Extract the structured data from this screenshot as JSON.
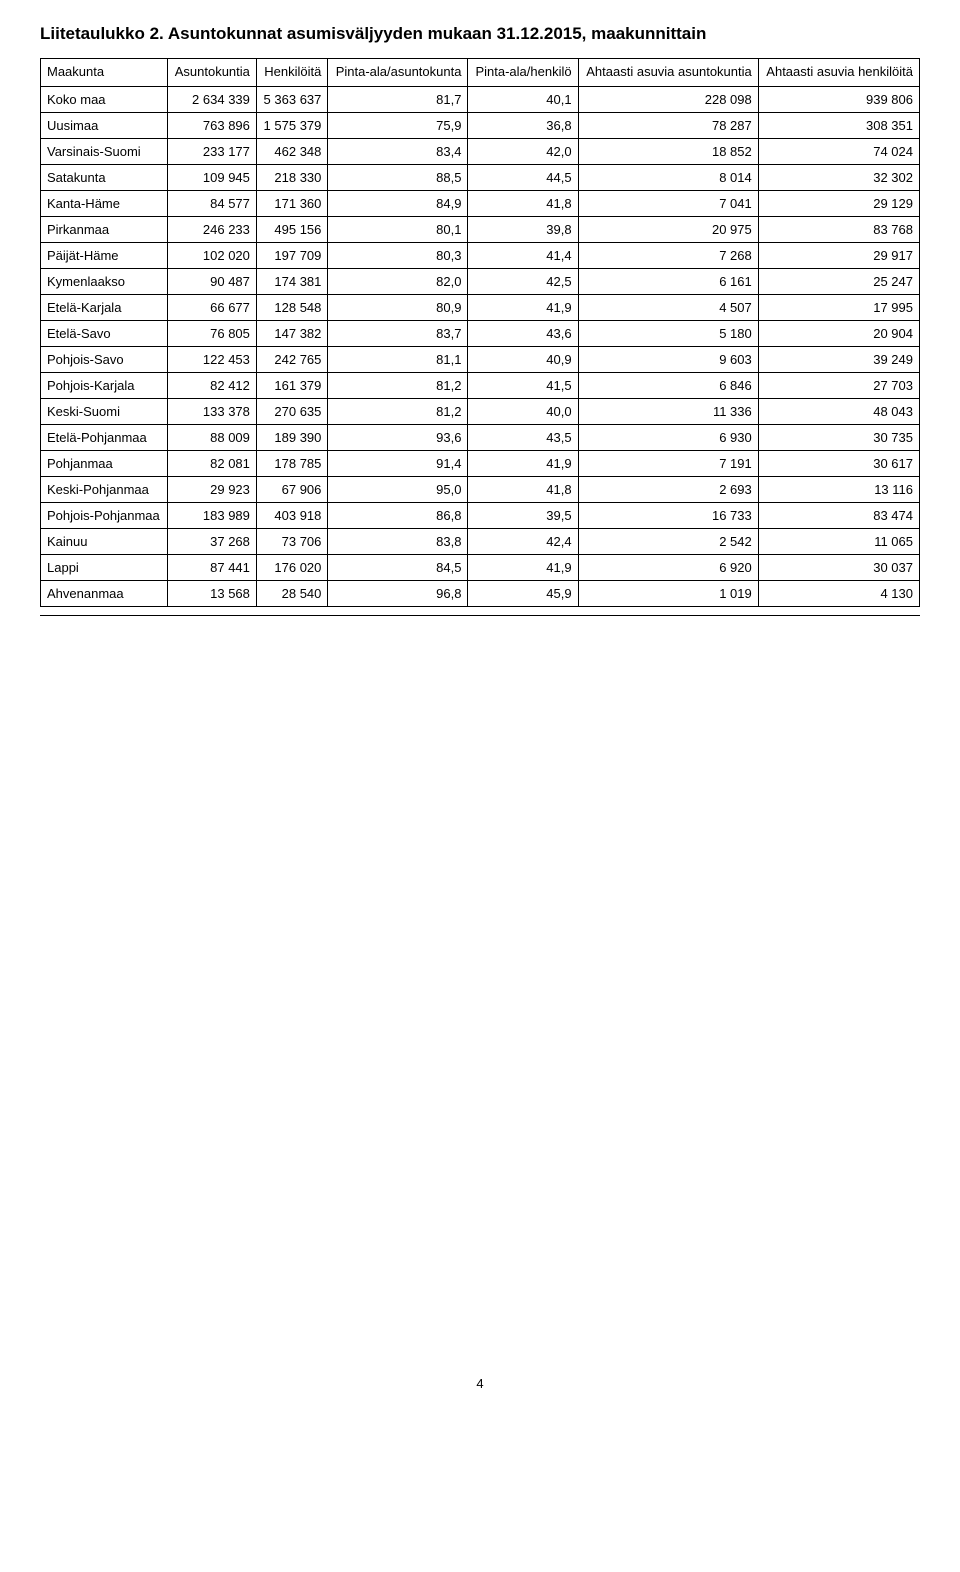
{
  "title": "Liitetaulukko 2. Asuntokunnat asumisväljyyden mukaan 31.12.2015, maakunnittain",
  "table": {
    "columns": [
      "Maakunta",
      "Asuntokuntia",
      "Henkilöitä",
      "Pinta-ala/asuntokunta",
      "Pinta-ala/henkilö",
      "Ahtaasti asuvia asuntokuntia",
      "Ahtaasti asuvia henkilöitä"
    ],
    "rows": [
      [
        "Koko maa",
        "2 634 339",
        "5 363 637",
        "81,7",
        "40,1",
        "228 098",
        "939 806"
      ],
      [
        "Uusimaa",
        "763 896",
        "1 575 379",
        "75,9",
        "36,8",
        "78 287",
        "308 351"
      ],
      [
        "Varsinais-Suomi",
        "233 177",
        "462 348",
        "83,4",
        "42,0",
        "18 852",
        "74 024"
      ],
      [
        "Satakunta",
        "109 945",
        "218 330",
        "88,5",
        "44,5",
        "8 014",
        "32 302"
      ],
      [
        "Kanta-Häme",
        "84 577",
        "171 360",
        "84,9",
        "41,8",
        "7 041",
        "29 129"
      ],
      [
        "Pirkanmaa",
        "246 233",
        "495 156",
        "80,1",
        "39,8",
        "20 975",
        "83 768"
      ],
      [
        "Päijät-Häme",
        "102 020",
        "197 709",
        "80,3",
        "41,4",
        "7 268",
        "29 917"
      ],
      [
        "Kymenlaakso",
        "90 487",
        "174 381",
        "82,0",
        "42,5",
        "6 161",
        "25 247"
      ],
      [
        "Etelä-Karjala",
        "66 677",
        "128 548",
        "80,9",
        "41,9",
        "4 507",
        "17 995"
      ],
      [
        "Etelä-Savo",
        "76 805",
        "147 382",
        "83,7",
        "43,6",
        "5 180",
        "20 904"
      ],
      [
        "Pohjois-Savo",
        "122 453",
        "242 765",
        "81,1",
        "40,9",
        "9 603",
        "39 249"
      ],
      [
        "Pohjois-Karjala",
        "82 412",
        "161 379",
        "81,2",
        "41,5",
        "6 846",
        "27 703"
      ],
      [
        "Keski-Suomi",
        "133 378",
        "270 635",
        "81,2",
        "40,0",
        "11 336",
        "48 043"
      ],
      [
        "Etelä-Pohjanmaa",
        "88 009",
        "189 390",
        "93,6",
        "43,5",
        "6 930",
        "30 735"
      ],
      [
        "Pohjanmaa",
        "82 081",
        "178 785",
        "91,4",
        "41,9",
        "7 191",
        "30 617"
      ],
      [
        "Keski-Pohjanmaa",
        "29 923",
        "67 906",
        "95,0",
        "41,8",
        "2 693",
        "13 116"
      ],
      [
        "Pohjois-Pohjanmaa",
        "183 989",
        "403 918",
        "86,8",
        "39,5",
        "16 733",
        "83 474"
      ],
      [
        "Kainuu",
        "37 268",
        "73 706",
        "83,8",
        "42,4",
        "2 542",
        "11 065"
      ],
      [
        "Lappi",
        "87 441",
        "176 020",
        "84,5",
        "41,9",
        "6 920",
        "30 037"
      ],
      [
        "Ahvenanmaa",
        "13 568",
        "28 540",
        "96,8",
        "45,9",
        "1 019",
        "4 130"
      ]
    ]
  },
  "page_number": "4",
  "style": {
    "title_fontsize": 17,
    "body_fontsize": 13,
    "border_color": "#000000",
    "background_color": "#ffffff",
    "text_color": "#000000"
  }
}
